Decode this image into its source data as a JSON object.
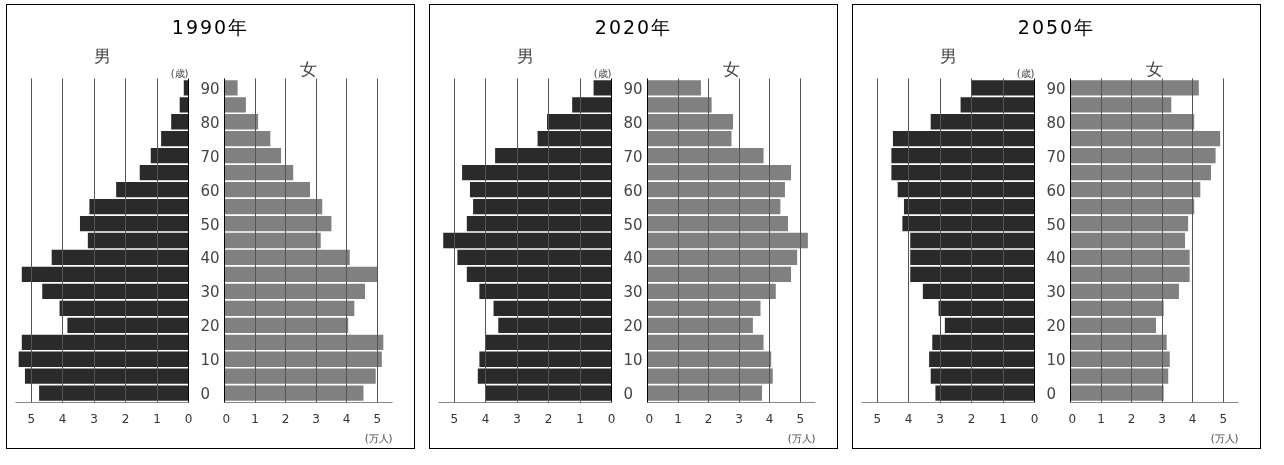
{
  "chart_data": [
    {
      "type": "bar",
      "orientation": "horizontal",
      "title": "1990年",
      "ylabel": "(歳)",
      "categories": [
        "90",
        null,
        "80",
        null,
        "70",
        null,
        "60",
        null,
        "50",
        null,
        "40",
        null,
        "30",
        null,
        "20",
        null,
        "10",
        null,
        "0"
      ],
      "xlim": [
        5.5,
        0
      ],
      "xticks": [
        0,
        1,
        2,
        3,
        4,
        5
      ],
      "grid": "x",
      "series": [
        {
          "name": "男",
          "color": "#2a2a2a",
          "values": [
            0.15,
            0.28,
            0.55,
            0.87,
            1.2,
            1.55,
            2.3,
            3.15,
            3.45,
            3.2,
            4.35,
            5.3,
            4.65,
            4.1,
            3.85,
            5.3,
            5.4,
            5.2,
            4.75
          ]
        }
      ]
    },
    {
      "type": "bar",
      "orientation": "horizontal",
      "xlabel": "(万人)",
      "categories": [
        "90",
        null,
        "80",
        null,
        "70",
        null,
        "60",
        null,
        "50",
        null,
        "40",
        null,
        "30",
        null,
        "20",
        null,
        "10",
        null,
        "0"
      ],
      "xlim": [
        0,
        5.5
      ],
      "xticks": [
        0,
        1,
        2,
        3,
        4,
        5
      ],
      "grid": "x",
      "tick_labels": "x",
      "series": [
        {
          "name": "女",
          "color": "#808080",
          "values": [
            0.43,
            0.7,
            1.1,
            1.5,
            1.85,
            2.25,
            2.8,
            3.2,
            3.5,
            3.15,
            4.1,
            5.0,
            4.6,
            4.25,
            4.05,
            5.2,
            5.15,
            4.95,
            4.55
          ]
        }
      ]
    },
    {
      "type": "bar",
      "orientation": "horizontal",
      "title": "2020年",
      "ylabel": "(歳)",
      "categories": [
        "90",
        null,
        "80",
        null,
        "70",
        null,
        "60",
        null,
        "50",
        null,
        "40",
        null,
        "30",
        null,
        "20",
        null,
        "10",
        null,
        "0"
      ],
      "xlim": [
        5.5,
        0
      ],
      "xticks": [
        0,
        1,
        2,
        3,
        4,
        5
      ],
      "grid": "x",
      "series": [
        {
          "name": "男",
          "color": "#2a2a2a",
          "values": [
            0.57,
            1.25,
            2.05,
            2.35,
            3.7,
            4.75,
            4.5,
            4.4,
            4.6,
            5.35,
            4.9,
            4.6,
            4.2,
            3.75,
            3.6,
            4.0,
            4.2,
            4.25,
            4.0
          ]
        }
      ]
    },
    {
      "type": "bar",
      "orientation": "horizontal",
      "xlabel": "(万人)",
      "categories": [
        "90",
        null,
        "80",
        null,
        "70",
        null,
        "60",
        null,
        "50",
        null,
        "40",
        null,
        "30",
        null,
        "20",
        null,
        "10",
        null,
        "0"
      ],
      "xlim": [
        0,
        5.5
      ],
      "xticks": [
        0,
        1,
        2,
        3,
        4,
        5
      ],
      "grid": "x",
      "tick_labels": "x",
      "series": [
        {
          "name": "女",
          "color": "#808080",
          "values": [
            1.75,
            2.1,
            2.8,
            2.75,
            3.8,
            4.7,
            4.5,
            4.35,
            4.6,
            5.25,
            4.9,
            4.7,
            4.2,
            3.7,
            3.45,
            3.8,
            4.05,
            4.1,
            3.75
          ]
        }
      ]
    },
    {
      "type": "bar",
      "orientation": "horizontal",
      "title": "2050年",
      "ylabel": "(歳)",
      "categories": [
        "90",
        null,
        "80",
        null,
        "70",
        null,
        "60",
        null,
        "50",
        null,
        "40",
        null,
        "30",
        null,
        "20",
        null,
        "10",
        null,
        "0"
      ],
      "xlim": [
        5.5,
        0
      ],
      "xticks": [
        0,
        1,
        2,
        3,
        4,
        5
      ],
      "grid": "x",
      "series": [
        {
          "name": "男",
          "color": "#2a2a2a",
          "values": [
            2.0,
            2.35,
            3.3,
            4.5,
            4.55,
            4.55,
            4.35,
            4.15,
            4.2,
            3.95,
            3.95,
            3.95,
            3.55,
            3.05,
            2.85,
            3.25,
            3.35,
            3.3,
            3.15
          ]
        }
      ]
    },
    {
      "type": "bar",
      "orientation": "horizontal",
      "xlabel": "(万人)",
      "categories": [
        "90",
        null,
        "80",
        null,
        "70",
        null,
        "60",
        null,
        "50",
        null,
        "40",
        null,
        "30",
        null,
        "20",
        null,
        "10",
        null,
        "0"
      ],
      "xlim": [
        0,
        5.5
      ],
      "xticks": [
        0,
        1,
        2,
        3,
        4,
        5
      ],
      "grid": "x",
      "tick_labels": "x",
      "series": [
        {
          "name": "女",
          "color": "#808080",
          "values": [
            4.2,
            3.3,
            4.05,
            4.9,
            4.75,
            4.6,
            4.25,
            4.05,
            3.85,
            3.75,
            3.9,
            3.9,
            3.55,
            3.05,
            2.8,
            3.15,
            3.25,
            3.2,
            3.05
          ]
        }
      ]
    }
  ]
}
